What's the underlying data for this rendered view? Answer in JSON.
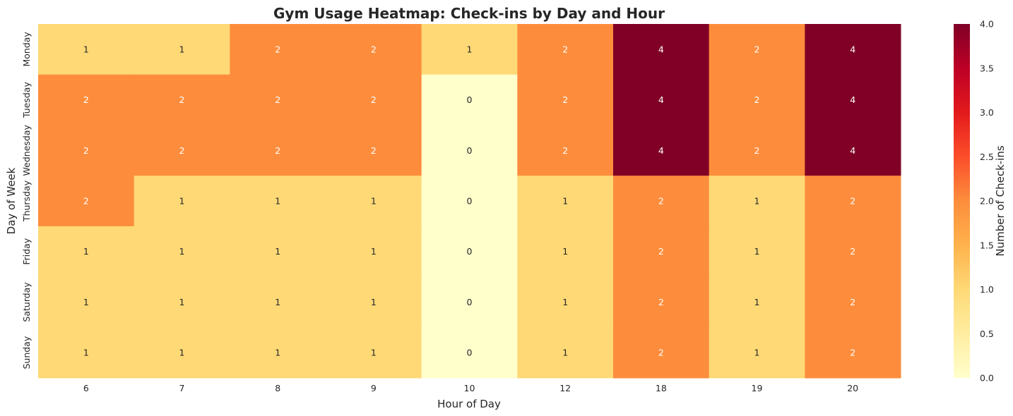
{
  "chart_data": {
    "type": "heatmap",
    "title": "Gym Usage Heatmap: Check-ins by Day and Hour",
    "xlabel": "Hour of Day",
    "ylabel": "Day of Week",
    "x_categories": [
      "6",
      "7",
      "8",
      "9",
      "10",
      "12",
      "18",
      "19",
      "20"
    ],
    "y_categories": [
      "Monday",
      "Tuesday",
      "Wednesday",
      "Thursday",
      "Friday",
      "Saturday",
      "Sunday"
    ],
    "values": [
      [
        1,
        1,
        2,
        2,
        1,
        2,
        4,
        2,
        4
      ],
      [
        2,
        2,
        2,
        2,
        0,
        2,
        4,
        2,
        4
      ],
      [
        2,
        2,
        2,
        2,
        0,
        2,
        4,
        2,
        4
      ],
      [
        2,
        1,
        1,
        1,
        0,
        1,
        2,
        1,
        2
      ],
      [
        1,
        1,
        1,
        1,
        0,
        1,
        2,
        1,
        2
      ],
      [
        1,
        1,
        1,
        1,
        0,
        1,
        2,
        1,
        2
      ],
      [
        1,
        1,
        1,
        1,
        0,
        1,
        2,
        1,
        2
      ]
    ],
    "colorbar": {
      "label": "Number of Check-ins",
      "range": [
        0,
        4
      ],
      "ticks": [
        "0.0",
        "0.5",
        "1.0",
        "1.5",
        "2.0",
        "2.5",
        "3.0",
        "3.5",
        "4.0"
      ]
    },
    "colormap": "YlOrRd",
    "colors": {
      "0": "#ffffcc",
      "1": "#fed976",
      "2": "#fd8d3c",
      "4": "#800026"
    },
    "annotated": true,
    "grid": false
  }
}
